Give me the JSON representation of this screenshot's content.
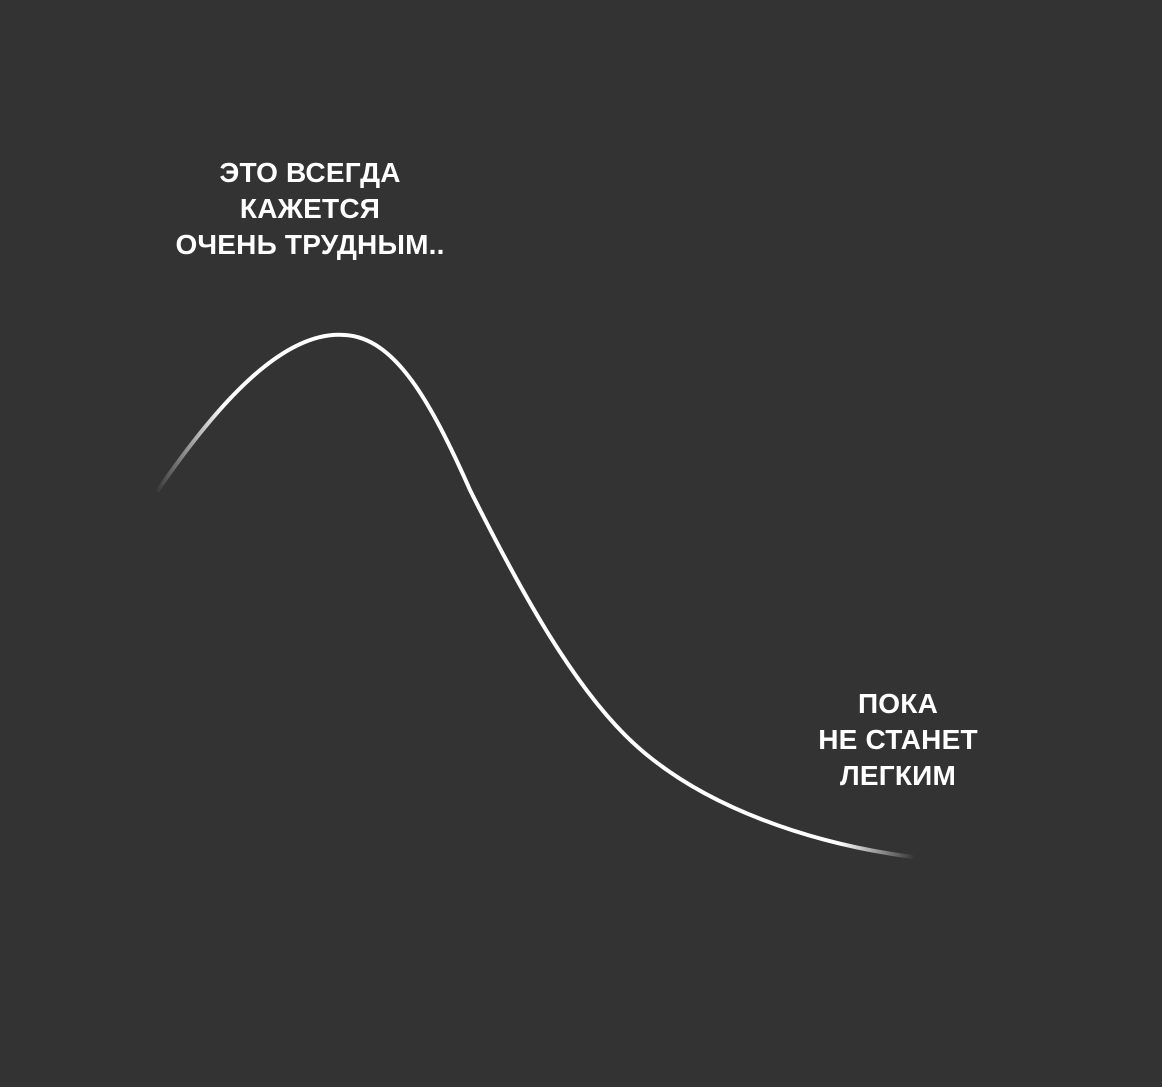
{
  "background_color": "#333333",
  "text_color": "#ffffff",
  "curve_color": "#ffffff",
  "captions": {
    "top": {
      "lines": [
        "ЭТО ВСЕГДА",
        "КАЖЕТСЯ",
        "ОЧЕНЬ ТРУДНЫМ.."
      ]
    },
    "bottom": {
      "lines": [
        "ПОКА",
        "НЕ СТАНЕТ",
        "ЛЕГКИМ"
      ]
    }
  }
}
